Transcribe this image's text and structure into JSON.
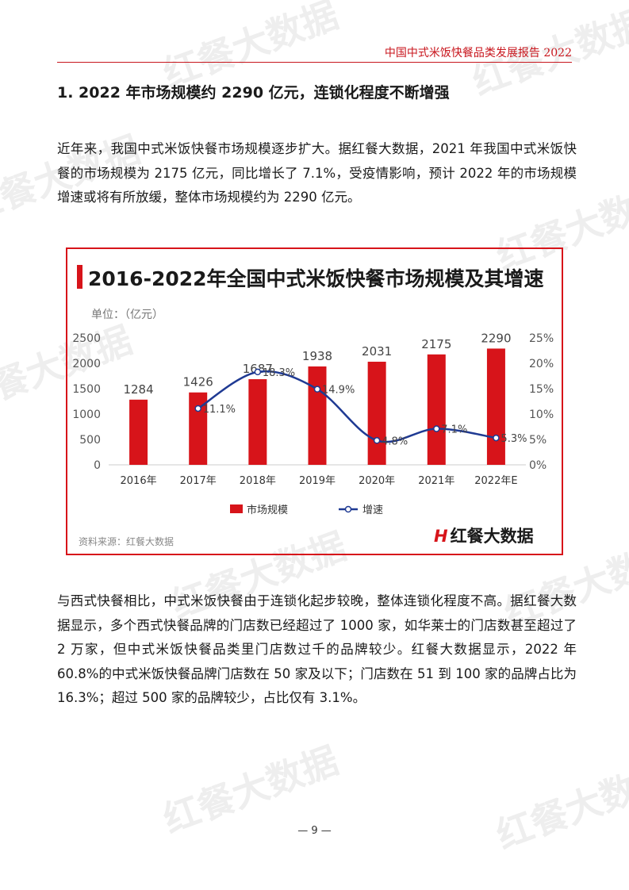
{
  "watermark": {
    "text": "红餐大数据"
  },
  "header": {
    "title": "中国中式米饭快餐品类发展报告 2022"
  },
  "section": {
    "heading": "1. 2022 年市场规模约 2290 亿元，连锁化程度不断增强"
  },
  "paragraphs": [
    "近年来，我国中式米饭快餐市场规模逐步扩大。据红餐大数据，2021 年我国中式米饭快餐的市场规模为 2175 亿元，同比增长了 7.1%，受疫情影响，预计 2022 年的市场规模增速或将有所放缓，整体市场规模约为 2290 亿元。",
    "与西式快餐相比，中式米饭快餐由于连锁化起步较晚，整体连锁化程度不高。据红餐大数据显示，多个西式快餐品牌的门店数已经超过了 1000 家，如华莱士的门店数甚至超过了 2 万家，但中式米饭快餐品类里门店数过千的品牌较少。红餐大数据显示，2022 年 60.8%的中式米饭快餐品牌门店数在 50 家及以下；门店数在 51 到 100 家的品牌占比为 16.3%；超过 500 家的品牌较少，占比仅有 3.1%。"
  ],
  "chart": {
    "unit_label": "单位：（亿元）",
    "source": "资料来源：红餐大数据",
    "brand_mark": "H",
    "brand_name": "红餐大数据"
  },
  "chart_data": {
    "type": "bar",
    "title": "2016-2022年全国中式米饭快餐市场规模及其增速",
    "categories": [
      "2016年",
      "2017年",
      "2018年",
      "2019年",
      "2020年",
      "2021年",
      "2022年E"
    ],
    "series": [
      {
        "name": "市场规模",
        "type": "bar",
        "axis": "left",
        "color": "#d7141a",
        "values": [
          1284,
          1426,
          1687,
          1938,
          2031,
          2175,
          2290
        ]
      },
      {
        "name": "增速",
        "type": "line",
        "axis": "right",
        "color": "#1f3a93",
        "values": [
          null,
          11.1,
          18.3,
          14.9,
          4.8,
          7.1,
          5.3
        ],
        "labels": [
          "",
          "11.1%",
          "18.3%",
          "14.9%",
          "4.8%",
          "7.1%",
          "5.3%"
        ]
      }
    ],
    "y_left": {
      "min": 0,
      "max": 2500,
      "ticks": [
        "0",
        "500",
        "1000",
        "1500",
        "2000",
        "2500"
      ]
    },
    "y_right": {
      "min": 0,
      "max": 25,
      "ticks": [
        "0%",
        "5%",
        "10%",
        "15%",
        "20%",
        "25%"
      ]
    },
    "legend_position": "bottom",
    "grid": false
  },
  "page_number": "— 9 —"
}
